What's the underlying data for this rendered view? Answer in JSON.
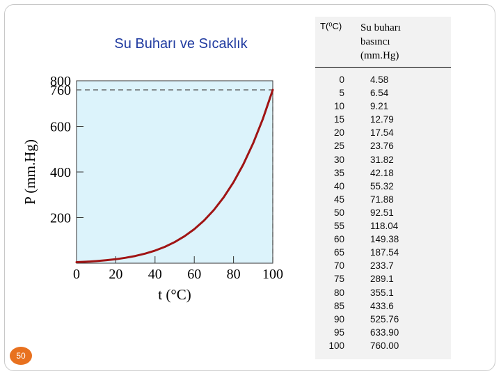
{
  "slide": {
    "title": "Su Buharı ve Sıcaklık",
    "page_number": "50"
  },
  "table": {
    "header_temp": "T(⁰C)",
    "header_pressure_lines": [
      "Su buharı",
      "basıncı",
      "(mm.Hg)"
    ],
    "temps": [
      "0",
      "5",
      "10",
      "15",
      "20",
      "25",
      "30",
      "35",
      "40",
      "45",
      "50",
      "55",
      "60",
      "65",
      "70",
      "75",
      "80",
      "85",
      "90",
      "95",
      "100"
    ],
    "pressures": [
      "4.58",
      "6.54",
      "9.21",
      "12.79",
      "17.54",
      "23.76",
      "31.82",
      "42.18",
      "55.32",
      "71.88",
      "92.51",
      "118.04",
      "149.38",
      "187.54",
      "233.7",
      "289.1",
      "355.1",
      "433.6",
      "525.76",
      "633.90",
      "760.00"
    ]
  },
  "chart_data": {
    "type": "line",
    "xlabel": "t (°C)",
    "ylabel": "P (mm.Hg)",
    "xlim": [
      0,
      100
    ],
    "ylim": [
      0,
      800
    ],
    "x_ticks": [
      "0",
      "20",
      "40",
      "60",
      "80",
      "100"
    ],
    "y_ticks": [
      "200",
      "400",
      "600",
      "760",
      "800"
    ],
    "reference_point": {
      "x": 100,
      "y": 760
    },
    "x": [
      0,
      5,
      10,
      15,
      20,
      25,
      30,
      35,
      40,
      45,
      50,
      55,
      60,
      65,
      70,
      75,
      80,
      85,
      90,
      95,
      100
    ],
    "series": [
      {
        "values": [
          4.58,
          6.54,
          9.21,
          12.79,
          17.54,
          23.76,
          31.82,
          42.18,
          55.32,
          71.88,
          92.51,
          118.04,
          149.38,
          187.54,
          233.7,
          289.1,
          355.1,
          433.6,
          525.76,
          633.9,
          760.0
        ]
      }
    ],
    "colors": {
      "plot_bg": "#dcf3fb",
      "curve": "#a01414",
      "reference_line": "#555555"
    }
  }
}
